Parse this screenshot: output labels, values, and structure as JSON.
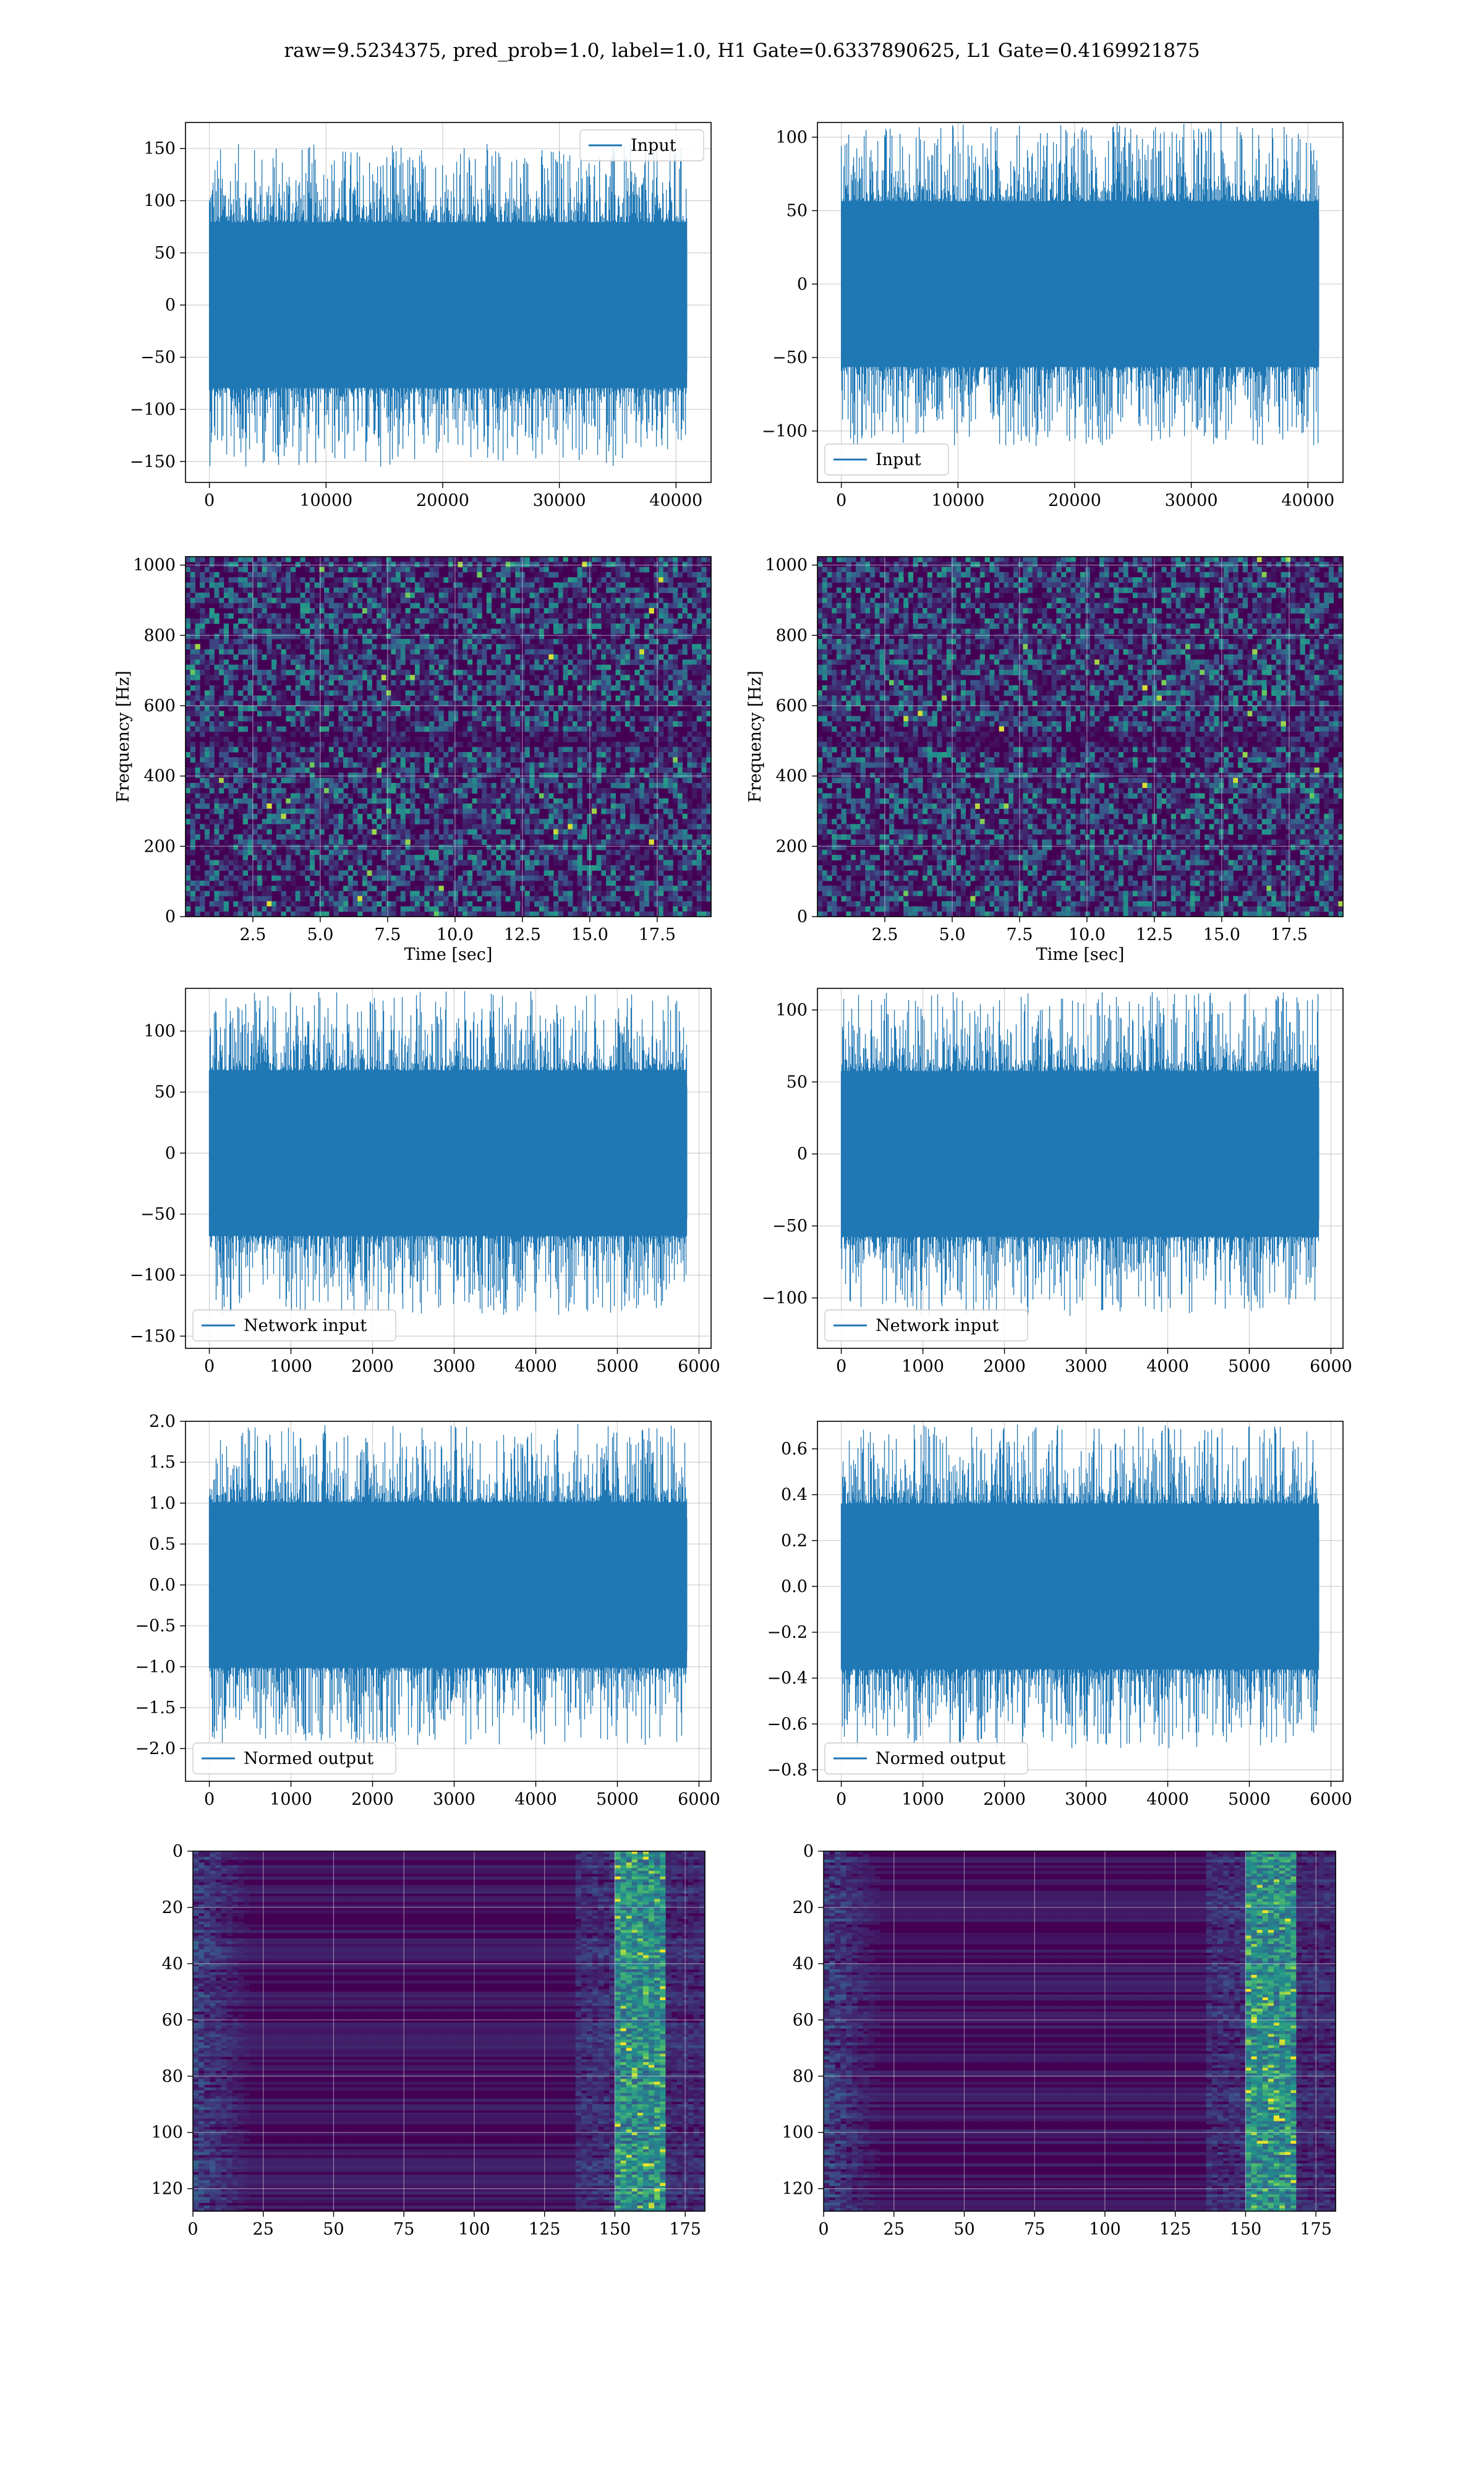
{
  "figure": {
    "title": "raw=9.5234375, pred_prob=1.0, label=1.0, H1 Gate=0.6337890625, L1 Gate=0.4169921875"
  },
  "chart_data": [
    {
      "id": "h1-input",
      "type": "line",
      "legend": "Input",
      "legend_loc": "upper right",
      "n_samples": 40960,
      "x_range": [
        0,
        40960
      ],
      "xlim": [
        -2048,
        43008
      ],
      "ylim": [
        -170,
        175
      ],
      "xticks": [
        0,
        10000,
        20000,
        30000,
        40000
      ],
      "yticks": [
        -150,
        -100,
        -50,
        0,
        50,
        100,
        150
      ],
      "color": "#1f77b4",
      "grid": true
    },
    {
      "id": "l1-input",
      "type": "line",
      "legend": "Input",
      "legend_loc": "lower left",
      "n_samples": 40960,
      "x_range": [
        0,
        40960
      ],
      "xlim": [
        -2048,
        43008
      ],
      "ylim": [
        -135,
        110
      ],
      "xticks": [
        0,
        10000,
        20000,
        30000,
        40000
      ],
      "yticks": [
        -100,
        -50,
        0,
        50,
        100
      ],
      "color": "#1f77b4",
      "grid": true
    },
    {
      "id": "h1-spectrogram",
      "type": "heatmap",
      "colormap": "viridis",
      "xlabel": "Time [sec]",
      "ylabel": "Frequency [Hz]",
      "xlim": [
        0,
        19.5
      ],
      "ylim": [
        0,
        1024
      ],
      "xticks": [
        "2.5",
        "5.0",
        "7.5",
        "10.0",
        "12.5",
        "15.0",
        "17.5"
      ],
      "yticks": [
        "0",
        "200",
        "400",
        "600",
        "800",
        "1000"
      ],
      "grid": true
    },
    {
      "id": "l1-spectrogram",
      "type": "heatmap",
      "colormap": "viridis",
      "xlabel": "Time [sec]",
      "ylabel": "Frequency [Hz]",
      "xlim": [
        0,
        19.5
      ],
      "ylim": [
        0,
        1024
      ],
      "xticks": [
        "2.5",
        "5.0",
        "7.5",
        "10.0",
        "12.5",
        "15.0",
        "17.5"
      ],
      "yticks": [
        "0",
        "200",
        "400",
        "600",
        "800",
        "1000"
      ],
      "grid": true
    },
    {
      "id": "h1-network-input",
      "type": "line",
      "legend": "Network input",
      "legend_loc": "lower left",
      "n_samples": 5856,
      "x_range": [
        0,
        5856
      ],
      "xlim": [
        -292,
        6148
      ],
      "ylim": [
        -160,
        135
      ],
      "xticks": [
        0,
        1000,
        2000,
        3000,
        4000,
        5000,
        6000
      ],
      "yticks": [
        -150,
        -100,
        -50,
        0,
        50,
        100
      ],
      "color": "#1f77b4",
      "grid": true
    },
    {
      "id": "l1-network-input",
      "type": "line",
      "legend": "Network input",
      "legend_loc": "lower left",
      "n_samples": 5856,
      "x_range": [
        0,
        5856
      ],
      "xlim": [
        -292,
        6148
      ],
      "ylim": [
        -135,
        115
      ],
      "xticks": [
        0,
        1000,
        2000,
        3000,
        4000,
        5000,
        6000
      ],
      "yticks": [
        -100,
        -50,
        0,
        50,
        100
      ],
      "color": "#1f77b4",
      "grid": true
    },
    {
      "id": "h1-normed-output",
      "type": "line",
      "legend": "Normed output",
      "legend_loc": "lower left",
      "n_samples": 5856,
      "x_range": [
        0,
        5856
      ],
      "xlim": [
        -292,
        6148
      ],
      "ylim": [
        -2.4,
        2.0
      ],
      "xticks": [
        0,
        1000,
        2000,
        3000,
        4000,
        5000,
        6000
      ],
      "yticks": [
        -2.0,
        -1.5,
        -1.0,
        -0.5,
        0.0,
        0.5,
        1.0,
        1.5,
        2.0
      ],
      "color": "#1f77b4",
      "grid": true
    },
    {
      "id": "l1-normed-output",
      "type": "line",
      "legend": "Normed output",
      "legend_loc": "lower left",
      "n_samples": 5856,
      "x_range": [
        0,
        5856
      ],
      "xlim": [
        -292,
        6148
      ],
      "ylim": [
        -0.85,
        0.72
      ],
      "xticks": [
        0,
        1000,
        2000,
        3000,
        4000,
        5000,
        6000
      ],
      "yticks": [
        -0.8,
        -0.6,
        -0.4,
        -0.2,
        0.0,
        0.2,
        0.4,
        0.6
      ],
      "color": "#1f77b4",
      "grid": true
    },
    {
      "id": "h1-feature-map",
      "type": "heatmap",
      "colormap": "viridis",
      "xlim": [
        0,
        182
      ],
      "ylim": [
        128,
        0
      ],
      "xticks": [
        "0",
        "25",
        "50",
        "75",
        "100",
        "125",
        "150",
        "175"
      ],
      "yticks": [
        "0",
        "20",
        "40",
        "60",
        "80",
        "100",
        "120"
      ],
      "grid": true
    },
    {
      "id": "l1-feature-map",
      "type": "heatmap",
      "colormap": "viridis",
      "xlim": [
        0,
        182
      ],
      "ylim": [
        128,
        0
      ],
      "xticks": [
        "0",
        "25",
        "50",
        "75",
        "100",
        "125",
        "150",
        "175"
      ],
      "yticks": [
        "0",
        "20",
        "40",
        "60",
        "80",
        "100",
        "120"
      ],
      "grid": true
    }
  ]
}
